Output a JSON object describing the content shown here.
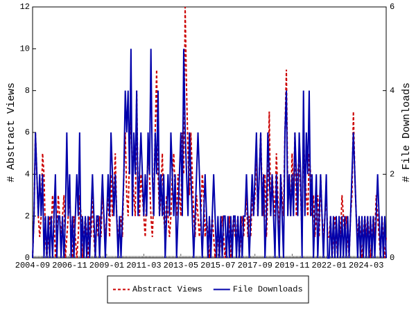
{
  "chart_data": {
    "type": "line",
    "ylabel": "# Abstract Views",
    "y2label": "# File Downloads",
    "ylim": [
      0,
      12
    ],
    "yticks": [
      0,
      2,
      4,
      6,
      8,
      10,
      12
    ],
    "y2lim": [
      0,
      6
    ],
    "y2ticks": [
      0,
      2,
      4,
      6
    ],
    "legend": "bottom",
    "grid": false,
    "categories": [
      "2004-09",
      null,
      null,
      null,
      null,
      null,
      null,
      null,
      null,
      null,
      null,
      null,
      null,
      null,
      null,
      null,
      null,
      null,
      null,
      null,
      null,
      null,
      null,
      null,
      null,
      null,
      "2006-11",
      null,
      null,
      null,
      null,
      null,
      null,
      null,
      null,
      null,
      null,
      null,
      null,
      null,
      null,
      null,
      null,
      null,
      null,
      null,
      null,
      null,
      null,
      null,
      null,
      null,
      "2009-01",
      null,
      null,
      null,
      null,
      null,
      null,
      null,
      null,
      null,
      null,
      null,
      null,
      null,
      null,
      null,
      null,
      null,
      null,
      null,
      null,
      null,
      null,
      null,
      null,
      null,
      "2011-03",
      null,
      null,
      null,
      null,
      null,
      null,
      null,
      null,
      null,
      null,
      null,
      null,
      null,
      null,
      null,
      null,
      null,
      null,
      null,
      null,
      null,
      null,
      null,
      null,
      null,
      "2013-05",
      null,
      null,
      null,
      null,
      null,
      null,
      null,
      null,
      null,
      null,
      null,
      null,
      null,
      null,
      null,
      null,
      null,
      null,
      null,
      null,
      null,
      null,
      null,
      null,
      null,
      "2015-07",
      null,
      null,
      null,
      null,
      null,
      null,
      null,
      null,
      null,
      null,
      null,
      null,
      null,
      null,
      null,
      null,
      null,
      null,
      null,
      null,
      null,
      null,
      null,
      null,
      null,
      "2017-09",
      null,
      null,
      null,
      null,
      null,
      null,
      null,
      null,
      null,
      null,
      null,
      null,
      null,
      null,
      null,
      null,
      null,
      null,
      null,
      null,
      null,
      null,
      null,
      null,
      null,
      "2019-11",
      null,
      null,
      null,
      null,
      null,
      null,
      null,
      null,
      null,
      null,
      null,
      null,
      null,
      null,
      null,
      null,
      null,
      null,
      null,
      null,
      null,
      null,
      null,
      null,
      null,
      "2022-01",
      null,
      null,
      null,
      null,
      null,
      null,
      null,
      null,
      null,
      null,
      null,
      null,
      null,
      null,
      null,
      null,
      null,
      null,
      null,
      null,
      null,
      null,
      null,
      null,
      null,
      "2024-03",
      null,
      null,
      null,
      null,
      null,
      null,
      null,
      null,
      null,
      null,
      null,
      null,
      null,
      null
    ],
    "series": [
      {
        "name": "Abstract Views",
        "color": "#cc0000",
        "linestyle": "dashed",
        "axis": "y",
        "values": [
          0,
          2,
          6,
          4,
          2,
          1,
          2,
          5,
          4,
          1,
          0,
          1,
          2,
          1,
          3,
          2,
          0,
          1,
          3,
          2,
          1,
          2,
          3,
          0,
          1,
          2,
          3,
          1,
          0,
          2,
          1,
          0,
          1,
          3,
          2,
          0,
          1,
          2,
          1,
          0,
          2,
          1,
          3,
          1,
          0,
          2,
          1,
          2,
          1,
          3,
          2,
          1,
          2,
          3,
          1,
          4,
          2,
          3,
          5,
          2,
          1,
          1,
          2,
          1,
          4,
          6,
          3,
          2,
          5,
          7,
          4,
          3,
          2,
          8,
          3,
          2,
          4,
          3,
          2,
          1,
          3,
          5,
          4,
          2,
          1,
          3,
          6,
          9,
          4,
          2,
          3,
          5,
          2,
          1,
          3,
          2,
          1,
          2,
          4,
          5,
          3,
          2,
          4,
          3,
          2,
          6,
          4,
          12,
          8,
          5,
          3,
          6,
          4,
          2,
          1,
          3,
          2,
          1,
          2,
          4,
          3,
          1,
          2,
          1,
          0,
          1,
          2,
          1,
          0,
          1,
          1,
          0,
          1,
          2,
          1,
          0,
          1,
          1,
          2,
          0,
          1,
          2,
          1,
          1,
          2,
          0,
          1,
          2,
          1,
          2,
          3,
          1,
          2,
          1,
          3,
          2,
          3,
          5,
          2,
          4,
          6,
          3,
          2,
          4,
          1,
          3,
          7,
          2,
          4,
          3,
          2,
          5,
          3,
          1,
          4,
          3,
          2,
          6,
          9,
          3,
          4,
          2,
          5,
          3,
          6,
          2,
          4,
          5,
          3,
          1,
          6,
          4,
          3,
          2,
          5,
          4,
          2,
          3,
          1,
          2,
          3,
          1,
          4,
          2,
          1,
          2,
          3,
          1,
          1,
          2,
          0,
          1,
          2,
          1,
          0,
          2,
          1,
          3,
          2,
          1,
          2,
          1,
          0,
          2,
          3,
          7,
          4,
          2,
          1,
          2,
          1,
          0,
          1,
          2,
          1,
          2,
          1,
          0,
          1,
          2,
          1,
          3,
          2,
          1,
          0,
          2,
          1,
          0,
          1
        ]
      },
      {
        "name": "File Downloads",
        "color": "#0000aa",
        "linestyle": "solid",
        "axis": "y2",
        "values": [
          0,
          1,
          3,
          2,
          1,
          2,
          1,
          2,
          0,
          1,
          0,
          1,
          0,
          1,
          0,
          1,
          2,
          0,
          1,
          1,
          0,
          1,
          0,
          1,
          3,
          1,
          2,
          0,
          1,
          0,
          1,
          2,
          1,
          3,
          0,
          1,
          0,
          1,
          0,
          1,
          0,
          1,
          2,
          1,
          0,
          1,
          1,
          0,
          1,
          2,
          1,
          0,
          1,
          2,
          1,
          3,
          2,
          1,
          2,
          1,
          0,
          1,
          0,
          1,
          2,
          4,
          3,
          4,
          2,
          5,
          1,
          3,
          2,
          4,
          1,
          2,
          3,
          2,
          1,
          2,
          1,
          3,
          2,
          5,
          2,
          1,
          3,
          2,
          4,
          1,
          2,
          1,
          2,
          0,
          1,
          2,
          1,
          3,
          2,
          1,
          2,
          0,
          1,
          2,
          3,
          1,
          5,
          3,
          2,
          1,
          3,
          2,
          1,
          0,
          1,
          2,
          3,
          2,
          1,
          0,
          1,
          2,
          1,
          0,
          1,
          0,
          1,
          2,
          1,
          0,
          1,
          0,
          1,
          0,
          1,
          1,
          0,
          1,
          0,
          1,
          0,
          1,
          1,
          0,
          1,
          0,
          1,
          0,
          1,
          1,
          2,
          1,
          0,
          1,
          2,
          1,
          2,
          3,
          1,
          2,
          3,
          1,
          2,
          0,
          1,
          3,
          2,
          1,
          2,
          1,
          0,
          2,
          1,
          0,
          2,
          1,
          0,
          3,
          4,
          1,
          2,
          1,
          2,
          1,
          3,
          2,
          1,
          3,
          2,
          0,
          4,
          1,
          3,
          2,
          4,
          1,
          2,
          0,
          1,
          2,
          0,
          1,
          2,
          1,
          0,
          1,
          2,
          0,
          0,
          1,
          0,
          1,
          0,
          1,
          0,
          1,
          0,
          1,
          0,
          1,
          0,
          1,
          0,
          1,
          2,
          3,
          2,
          1,
          0,
          1,
          0,
          1,
          0,
          1,
          0,
          1,
          0,
          1,
          0,
          1,
          0,
          1,
          2,
          1,
          0,
          1,
          0,
          1,
          0
        ]
      }
    ]
  }
}
